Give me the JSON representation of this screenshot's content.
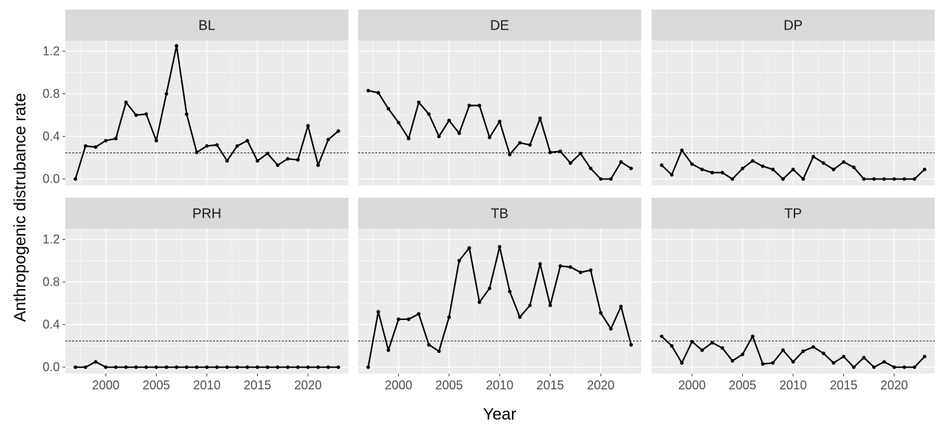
{
  "chart_data": {
    "type": "line",
    "xlabel": "Year",
    "ylabel": "Anthropogenic distrubance rate",
    "xlim": [
      1996,
      2024
    ],
    "ylim": [
      -0.06,
      1.3
    ],
    "x_ticks": [
      2000,
      2005,
      2010,
      2015,
      2020
    ],
    "y_ticks": [
      0.0,
      0.4,
      0.8,
      1.2
    ],
    "y_tick_labels": [
      "0.0",
      "0.4",
      "0.8",
      "1.2"
    ],
    "reference_line": 0.245,
    "grid": true,
    "x": [
      1997,
      1998,
      1999,
      2000,
      2001,
      2002,
      2003,
      2004,
      2005,
      2006,
      2007,
      2008,
      2009,
      2010,
      2011,
      2012,
      2013,
      2014,
      2015,
      2016,
      2017,
      2018,
      2019,
      2020,
      2021,
      2022,
      2023
    ],
    "panels": [
      {
        "name": "BL",
        "values": [
          0.0,
          0.31,
          0.3,
          0.36,
          0.38,
          0.72,
          0.6,
          0.61,
          0.36,
          0.8,
          1.25,
          0.61,
          0.25,
          0.31,
          0.32,
          0.17,
          0.31,
          0.36,
          0.17,
          0.24,
          0.13,
          0.19,
          0.18,
          0.5,
          0.13,
          0.37,
          0.45
        ]
      },
      {
        "name": "DE",
        "values": [
          0.83,
          0.81,
          0.66,
          0.53,
          0.38,
          0.72,
          0.61,
          0.4,
          0.55,
          0.43,
          0.69,
          0.69,
          0.39,
          0.54,
          0.23,
          0.34,
          0.32,
          0.57,
          0.25,
          0.26,
          0.15,
          0.24,
          0.1,
          0.0,
          0.0,
          0.16,
          0.1
        ]
      },
      {
        "name": "DP",
        "values": [
          0.13,
          0.04,
          0.27,
          0.14,
          0.09,
          0.06,
          0.06,
          0.0,
          0.1,
          0.17,
          0.12,
          0.09,
          0.0,
          0.09,
          0.0,
          0.21,
          0.15,
          0.09,
          0.16,
          0.11,
          0.0,
          0.0,
          0.0,
          0.0,
          0.0,
          0.0,
          0.09
        ]
      },
      {
        "name": "PRH",
        "values": [
          0.0,
          0.0,
          0.05,
          0.0,
          0.0,
          0.0,
          0.0,
          0.0,
          0.0,
          0.0,
          0.0,
          0.0,
          0.0,
          0.0,
          0.0,
          0.0,
          0.0,
          0.0,
          0.0,
          0.0,
          0.0,
          0.0,
          0.0,
          0.0,
          0.0,
          0.0,
          0.0
        ]
      },
      {
        "name": "TB",
        "values": [
          0.0,
          0.52,
          0.16,
          0.45,
          0.45,
          0.5,
          0.21,
          0.15,
          0.47,
          1.0,
          1.12,
          0.61,
          0.74,
          1.13,
          0.71,
          0.47,
          0.58,
          0.97,
          0.58,
          0.95,
          0.94,
          0.89,
          0.91,
          0.51,
          0.36,
          0.57,
          0.21
        ]
      },
      {
        "name": "TP",
        "values": [
          0.29,
          0.2,
          0.04,
          0.24,
          0.16,
          0.23,
          0.18,
          0.06,
          0.12,
          0.29,
          0.03,
          0.04,
          0.16,
          0.05,
          0.15,
          0.19,
          0.13,
          0.04,
          0.1,
          0.0,
          0.09,
          0.0,
          0.05,
          0.0,
          0.0,
          0.0,
          0.1
        ]
      }
    ],
    "colors": {
      "panel_bg": "#ebebeb",
      "strip_bg": "#d9d9d9",
      "grid_major": "#ffffff",
      "line": "#000000"
    }
  }
}
